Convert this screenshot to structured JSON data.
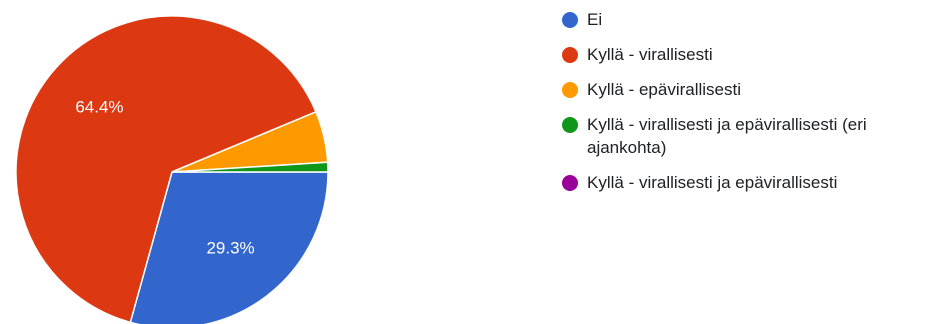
{
  "chart_data": {
    "type": "pie",
    "slices": [
      {
        "label": "Ei",
        "value": 29.3,
        "color": "#3366cc",
        "display": "29.3%"
      },
      {
        "label": "Kyllä - virallisesti",
        "value": 64.4,
        "color": "#dc3912",
        "display": "64.4%"
      },
      {
        "label": "Kyllä - epävirallisesti",
        "value": 5.3,
        "color": "#ff9900",
        "display": ""
      },
      {
        "label": "Kyllä - virallisesti ja epävirallisesti (eri ajankohta)",
        "value": 1.0,
        "color": "#109618",
        "display": ""
      },
      {
        "label": "Kyllä - virallisesti ja epävirallisesti",
        "value": 0.0,
        "color": "#990099",
        "display": ""
      }
    ],
    "legend_position": "right"
  }
}
